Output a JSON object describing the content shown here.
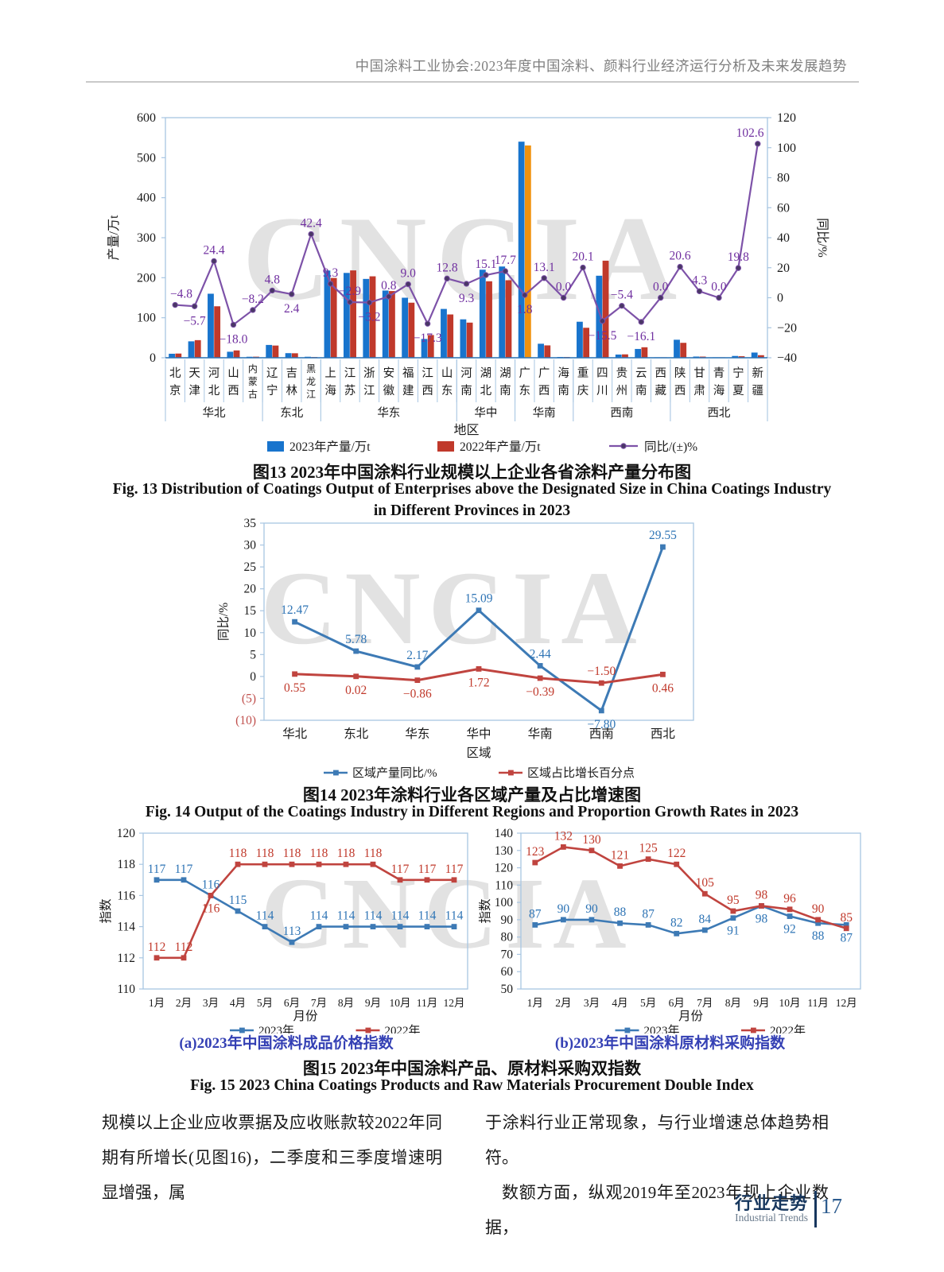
{
  "page": {
    "header_title": "中国涂料工业协会:2023年度中国涂料、颜料行业经济运行分析及未来发展趋势",
    "watermark_text": "CNCIA",
    "body": {
      "col_left": "规模以上企业应收票据及应收账款较2022年同期有所增长(见图16)，二季度和三季度增速明显增强，属",
      "col_right_p1": "于涂料行业正常现象，与行业增速总体趋势相符。",
      "col_right_p2": "数额方面，纵观2019年至2023年规上企业数据，"
    },
    "footer": {
      "section_zh": "行业走势",
      "section_en": "Industrial Trends",
      "page_number": "17"
    }
  },
  "captions": {
    "fig13_zh": "图13  2023年中国涂料行业规模以上企业各省涂料产量分布图",
    "fig13_en": "Fig. 13  Distribution of Coatings Output of Enterprises above the Designated Size in China Coatings Industry",
    "fig13_en2": "in Different Provinces in 2023",
    "fig14_zh": "图14  2023年涂料行业各区域产量及占比增速图",
    "fig14_en": "Fig. 14  Output of the Coatings Industry in Different Regions and Proportion Growth Rates in 2023",
    "fig15a": "(a)2023年中国涂料成品价格指数",
    "fig15b": "(b)2023年中国涂料原材料采购指数",
    "fig15_zh": "图15  2023年中国涂料产品、原材料采购双指数",
    "fig15_en": "Fig. 15  2023 China Coatings Products and Raw Materials Procurement Double Index"
  },
  "colors": {
    "bar_blue": "#1874cd",
    "bar_red": "#c0392b",
    "bar_orange": "#f0920e",
    "line_purple": "#7d52a8",
    "marker_purple": "#4a3766",
    "label_purple": "#7030a0",
    "line_blue": "#3d7ab5",
    "line_red": "#c0443f",
    "label_blue": "#2e74b5",
    "label_red": "#c0392b",
    "axis_box": "#a8c6e2",
    "axis_blue": "#2e75b6",
    "neg_tick_red": "#c0504d",
    "tick_text": "#1a1a1a"
  },
  "chart_data": [
    {
      "id": "fig13",
      "type": "bar",
      "title": "2023年中国涂料行业规模以上企业各省涂料产量分布图",
      "categories": [
        "北京",
        "天津",
        "河北",
        "山西",
        "内蒙古",
        "辽宁",
        "吉林",
        "黑龙江",
        "上海",
        "江苏",
        "浙江",
        "安徽",
        "福建",
        "江西",
        "山东",
        "河南",
        "湖北",
        "湖南",
        "广东",
        "广西",
        "海南",
        "重庆",
        "四川",
        "贵州",
        "云南",
        "西藏",
        "陕西",
        "甘肃",
        "青海",
        "宁夏",
        "新疆"
      ],
      "groups": [
        {
          "label": "华北",
          "span": 5
        },
        {
          "label": "东北",
          "span": 3
        },
        {
          "label": "华东",
          "span": 7
        },
        {
          "label": "华中",
          "span": 3
        },
        {
          "label": "华南",
          "span": 3
        },
        {
          "label": "西南",
          "span": 5
        },
        {
          "label": "西北",
          "span": 5
        }
      ],
      "series": [
        {
          "name": "2023年产量/万t",
          "type": "bar",
          "color_key": "bar_blue",
          "values": [
            10,
            41,
            160,
            15,
            2.5,
            32,
            11.5,
            2.5,
            218,
            212,
            197,
            168,
            150,
            47,
            122,
            96,
            220,
            228,
            540,
            35,
            2,
            90,
            205,
            8,
            22,
            1.2,
            45,
            3,
            1.2,
            4.5,
            13
          ]
        },
        {
          "name": "2022年产量/万t",
          "type": "bar",
          "color_key": "bar_red",
          "values": [
            10.5,
            44,
            128.6,
            18.3,
            2.7,
            30.5,
            11.2,
            1.8,
            199.4,
            218.3,
            203.5,
            166.7,
            137.6,
            56.8,
            108.2,
            87.8,
            191.1,
            193.7,
            530.5,
            30.9,
            2,
            74.9,
            242.6,
            8.5,
            26.2,
            1.2,
            37.3,
            2.9,
            1.2,
            3.8,
            6.4
          ]
        },
        {
          "name": "同比/(±)%",
          "type": "line",
          "axis": "right",
          "color_key": "line_purple",
          "values": [
            -4.8,
            -5.7,
            24.4,
            -18.0,
            -8.2,
            4.8,
            2.4,
            42.4,
            9.3,
            -2.9,
            -3.2,
            0.8,
            9.0,
            -17.3,
            12.8,
            9.3,
            15.1,
            17.7,
            1.8,
            13.1,
            0.0,
            20.1,
            -15.5,
            -5.4,
            -16.1,
            0.0,
            20.6,
            4.3,
            0.0,
            19.8,
            102.6
          ]
        }
      ],
      "highlight": {
        "category": "广东",
        "series_index": 1,
        "color_key": "bar_orange"
      },
      "left_axis": {
        "title": "产量/万t",
        "min": 0,
        "max": 600,
        "step": 100
      },
      "right_axis": {
        "title": "同比/%",
        "min": -40,
        "max": 120,
        "step": 20
      },
      "xlabel": "地区"
    },
    {
      "id": "fig14",
      "type": "line",
      "title": "2023年涂料行业各区域产量及占比增速图",
      "categories": [
        "华北",
        "东北",
        "华东",
        "华中",
        "华南",
        "西南",
        "西北"
      ],
      "series": [
        {
          "name": "区域产量同比/%",
          "color_key": "line_blue",
          "values": [
            12.47,
            5.78,
            2.17,
            15.09,
            2.44,
            -7.8,
            29.55
          ]
        },
        {
          "name": "区域占比增长百分点",
          "color_key": "line_red",
          "values": [
            0.55,
            0.02,
            -0.86,
            1.72,
            -0.39,
            -1.5,
            0.46
          ]
        }
      ],
      "y_axis": {
        "title": "同比/%",
        "min": -10,
        "max": 35,
        "step": 5,
        "paren_negative": true
      },
      "xlabel": "区域",
      "label_decimals": 2
    },
    {
      "id": "fig15a",
      "type": "line",
      "title": "2023年中国涂料成品价格指数",
      "categories": [
        "1月",
        "2月",
        "3月",
        "4月",
        "5月",
        "6月",
        "7月",
        "8月",
        "9月",
        "10月",
        "11月",
        "12月"
      ],
      "series": [
        {
          "name": "2023年",
          "color_key": "line_blue",
          "values": [
            117,
            117,
            116,
            115,
            114,
            113,
            114,
            114,
            114,
            114,
            114,
            114
          ]
        },
        {
          "name": "2022年",
          "color_key": "line_red",
          "values": [
            112,
            112,
            116,
            118,
            118,
            118,
            118,
            118,
            118,
            117,
            117,
            117
          ]
        }
      ],
      "y_axis": {
        "title": "指数",
        "min": 110,
        "max": 120,
        "step": 2,
        "paren_negative": false
      },
      "xlabel": "月份",
      "label_decimals": 0
    },
    {
      "id": "fig15b",
      "type": "line",
      "title": "2023年中国涂料原材料采购指数",
      "categories": [
        "1月",
        "2月",
        "3月",
        "4月",
        "5月",
        "6月",
        "7月",
        "8月",
        "9月",
        "10月",
        "11月",
        "12月"
      ],
      "series": [
        {
          "name": "2023年",
          "color_key": "line_blue",
          "values": [
            87,
            90,
            90,
            88,
            87,
            82,
            84,
            91,
            98,
            92,
            88,
            87
          ]
        },
        {
          "name": "2022年",
          "color_key": "line_red",
          "values": [
            123,
            132,
            130,
            121,
            125,
            122,
            105,
            95,
            98,
            96,
            90,
            85
          ]
        }
      ],
      "y_axis": {
        "title": "指数",
        "min": 50,
        "max": 140,
        "step": 10,
        "paren_negative": false
      },
      "xlabel": "月份",
      "label_decimals": 0
    }
  ]
}
